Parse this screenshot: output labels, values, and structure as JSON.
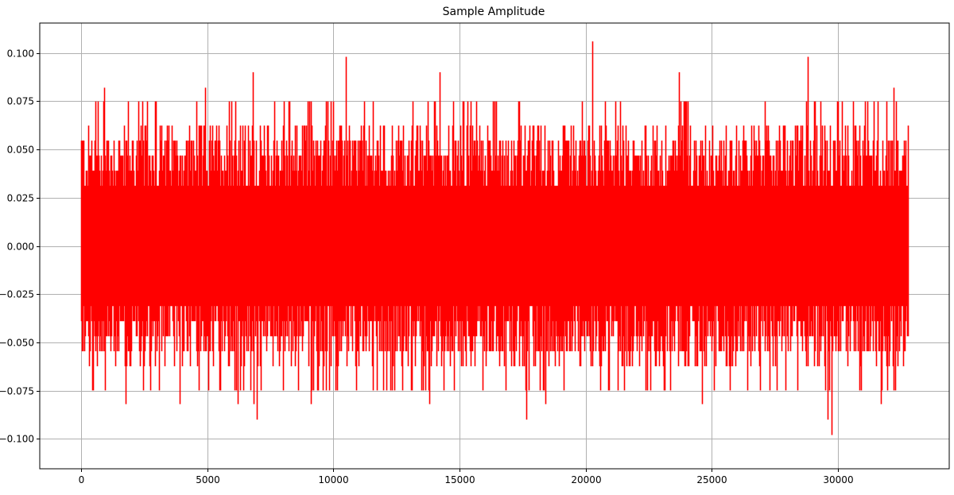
{
  "chart_data": {
    "type": "line",
    "title": "Sample Amplitude",
    "xlabel": "",
    "ylabel": "",
    "xlim": [
      -1638,
      34406
    ],
    "ylim": [
      -0.1155,
      0.1155
    ],
    "grid": true,
    "legend": null,
    "line_color": "#ff0000",
    "x_ticks": [
      0,
      5000,
      10000,
      15000,
      20000,
      25000,
      30000
    ],
    "x_tick_labels": [
      "0",
      "5000",
      "10000",
      "15000",
      "20000",
      "25000",
      "30000"
    ],
    "y_ticks": [
      0.1,
      0.075,
      0.05,
      0.025,
      0.0,
      -0.025,
      -0.05,
      -0.075,
      -0.1
    ],
    "y_tick_labels": [
      "0.100",
      "0.075",
      "0.050",
      "0.025",
      "0.000",
      "−0.025",
      "−0.050",
      "−0.075",
      "−0.100"
    ],
    "series": [
      {
        "name": "amplitude",
        "n_samples": 32768,
        "x_range": [
          0,
          32767
        ],
        "typical_band": [
          -0.05,
          0.06
        ],
        "quantization_step": 0.0078,
        "notable_peaks": [
          {
            "x": 900,
            "y": 0.082
          },
          {
            "x": 4900,
            "y": 0.082
          },
          {
            "x": 6800,
            "y": 0.09
          },
          {
            "x": 10500,
            "y": 0.098
          },
          {
            "x": 14200,
            "y": 0.09
          },
          {
            "x": 20250,
            "y": 0.106
          },
          {
            "x": 23700,
            "y": 0.09
          },
          {
            "x": 28800,
            "y": 0.098
          },
          {
            "x": 32200,
            "y": 0.082
          }
        ],
        "notable_troughs": [
          {
            "x": 1750,
            "y": -0.082
          },
          {
            "x": 3900,
            "y": -0.082
          },
          {
            "x": 6200,
            "y": -0.082
          },
          {
            "x": 6850,
            "y": -0.082
          },
          {
            "x": 6950,
            "y": -0.09
          },
          {
            "x": 9100,
            "y": -0.082
          },
          {
            "x": 13800,
            "y": -0.082
          },
          {
            "x": 17650,
            "y": -0.09
          },
          {
            "x": 18400,
            "y": -0.082
          },
          {
            "x": 24600,
            "y": -0.082
          },
          {
            "x": 29600,
            "y": -0.09
          },
          {
            "x": 29750,
            "y": -0.098
          },
          {
            "x": 31700,
            "y": -0.082
          }
        ]
      }
    ]
  }
}
